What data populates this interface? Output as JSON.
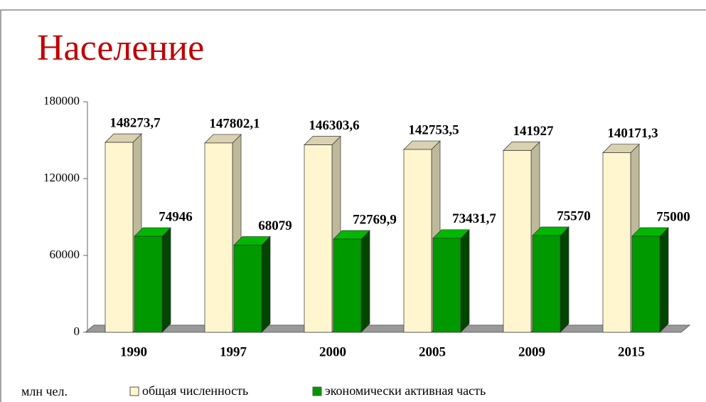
{
  "chart_data": {
    "type": "bar3d",
    "title": "Население",
    "ylabel": "млн чел.",
    "categories": [
      "1990",
      "1997",
      "2000",
      "2005",
      "2009",
      "2015"
    ],
    "series": [
      {
        "name": "общая численность",
        "color": "#fff6cf",
        "values": [
          148273.7,
          147802.1,
          146303.6,
          142753.5,
          141927,
          140171.3
        ],
        "value_labels": [
          "148273,7",
          "147802,1",
          "146303,6",
          "142753,5",
          "141927",
          "140171,3"
        ]
      },
      {
        "name": "экономически активная часть",
        "color": "#009900",
        "values": [
          74946,
          68079,
          72769.9,
          73431.7,
          75570,
          75000
        ],
        "value_labels": [
          "74946",
          "68079",
          "72769,9",
          "73431,7",
          "75570",
          "75000"
        ]
      }
    ],
    "ylim": [
      0,
      180000
    ],
    "yticks": [
      0,
      60000,
      120000,
      180000
    ]
  }
}
